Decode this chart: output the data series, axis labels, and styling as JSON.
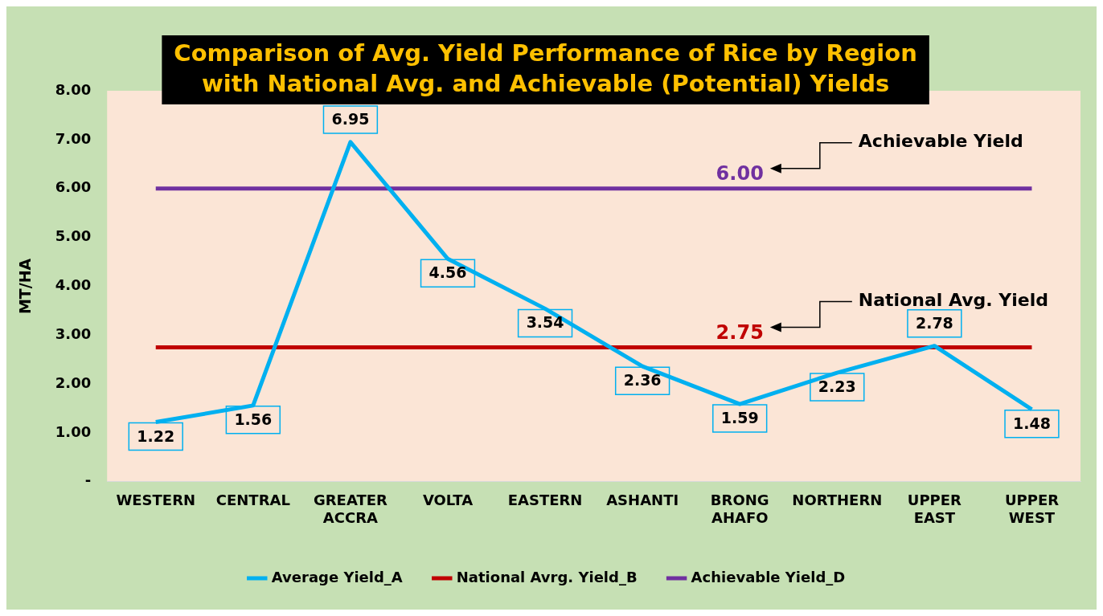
{
  "chart_data": {
    "type": "line",
    "title": "Comparison of Avg. Yield Performance of Rice by Region with National Avg. and Achievable (Potential) Yields",
    "ylabel": "MT/HA",
    "categories": [
      "WESTERN",
      "CENTRAL",
      "GREATER ACCRA",
      "VOLTA",
      "EASTERN",
      "ASHANTI",
      "BRONG AHAFO",
      "NORTHERN",
      "UPPER EAST",
      "UPPER WEST"
    ],
    "series": [
      {
        "name": "Average Yield_A",
        "color": "#00b0f0",
        "values": [
          1.22,
          1.56,
          6.95,
          4.56,
          3.54,
          2.36,
          1.59,
          2.23,
          2.78,
          1.48
        ],
        "value_labels": [
          "1.22",
          "1.56",
          "6.95",
          "4.56",
          "3.54",
          "2.36",
          "1.59",
          "2.23",
          "2.78",
          "1.48"
        ]
      },
      {
        "name": "National Avrg. Yield_B",
        "color": "#c00000",
        "values": [
          2.75,
          2.75,
          2.75,
          2.75,
          2.75,
          2.75,
          2.75,
          2.75,
          2.75,
          2.75
        ],
        "value_labels": [
          null,
          null,
          null,
          null,
          null,
          null,
          "2.75",
          null,
          null,
          null
        ]
      },
      {
        "name": "Achievable Yield_D",
        "color": "#7030a0",
        "values": [
          6.0,
          6.0,
          6.0,
          6.0,
          6.0,
          6.0,
          6.0,
          6.0,
          6.0,
          6.0
        ],
        "value_labels": [
          null,
          null,
          null,
          null,
          null,
          null,
          "6.00",
          null,
          null,
          null
        ]
      }
    ],
    "ylim": [
      0,
      8
    ],
    "yticks": [
      {
        "value": 0,
        "label": "-"
      },
      {
        "value": 1,
        "label": "1.00"
      },
      {
        "value": 2,
        "label": "2.00"
      },
      {
        "value": 3,
        "label": "3.00"
      },
      {
        "value": 4,
        "label": "4.00"
      },
      {
        "value": 5,
        "label": "5.00"
      },
      {
        "value": 6,
        "label": "6.00"
      },
      {
        "value": 7,
        "label": "7.00"
      },
      {
        "value": 8,
        "label": "8.00"
      }
    ],
    "annotations": [
      "Achievable Yield",
      "National Avg. Yield"
    ],
    "grid": false,
    "legend": "bottom",
    "marker": "none",
    "line_style": "solid"
  }
}
